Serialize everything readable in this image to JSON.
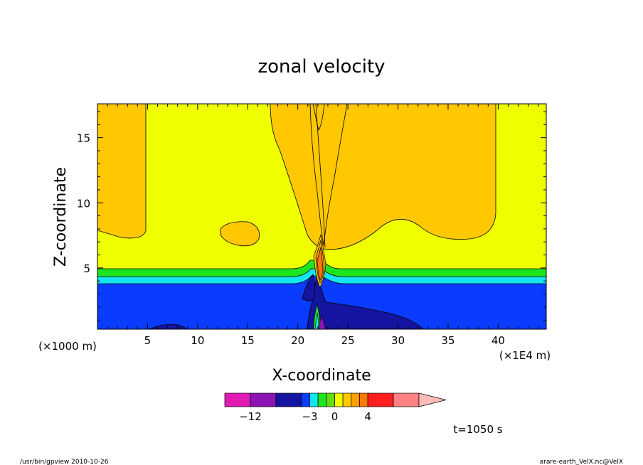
{
  "chart_data": {
    "type": "heatmap",
    "title": "zonal velocity",
    "xlabel": "X-coordinate",
    "ylabel": "Z-coordinate",
    "x_unit_left": "(×1000 m)",
    "x_unit_right": "(×1E4 m)",
    "time_label": "t=1050 s",
    "xlim": [
      0,
      44.8
    ],
    "ylim": [
      0.3,
      17.6
    ],
    "xticks": [
      5,
      10,
      15,
      20,
      25,
      30,
      35,
      40
    ],
    "yticks": [
      5,
      10,
      15
    ],
    "colorbar": {
      "tick_labels": [
        {
          "value": -12,
          "label": "−12"
        },
        {
          "value": -3,
          "label": "−3"
        },
        {
          "value": 0,
          "label": "0"
        },
        {
          "value": 4,
          "label": "4"
        }
      ],
      "levels": [
        -16,
        -12,
        -8,
        -4,
        -3,
        -2,
        -1,
        0,
        1,
        2,
        3,
        4,
        8,
        12
      ],
      "colors": [
        "#e11ab4",
        "#8c14b4",
        "#1414a0",
        "#0a3cff",
        "#14e6f0",
        "#1ee61e",
        "#64dc14",
        "#f0ff00",
        "#ffc800",
        "#ffa000",
        "#ff7800",
        "#ff1e1e",
        "#ff8282",
        "#ffbcbc"
      ]
    }
  },
  "footer": {
    "left": "/usr/bin/gpview   2010-10-26",
    "right": "arare-earth_VelX.nc@VelX"
  }
}
